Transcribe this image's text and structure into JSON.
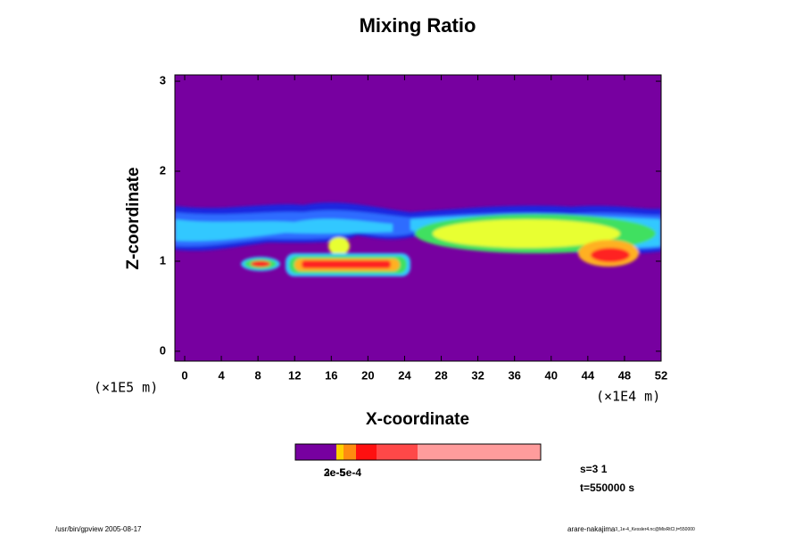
{
  "chart_data": {
    "type": "contour",
    "title": "Mixing Ratio",
    "x_label": "X-coordinate",
    "y_label": "Z-coordinate",
    "x_unit": "(×1E4 m)",
    "y_unit": "(×1E5 m)",
    "xlim": [
      -1.07,
      52
    ],
    "ylim": [
      -0.11,
      3.07
    ],
    "xticks": [
      0,
      4,
      8,
      12,
      16,
      20,
      24,
      28,
      32,
      36,
      40,
      44,
      48,
      52
    ],
    "yticks": [
      0,
      1,
      2,
      3
    ],
    "background": "#7700a0",
    "colorbar": {
      "colors": [
        "#7700a0",
        "#ffd000",
        "#ff8c10",
        "#ff1010",
        "#ff4848",
        "#ff9c9c"
      ],
      "labels": [
        "2e-5",
        "3e-5",
        "5e-4"
      ]
    },
    "info": [
      "s=3 1",
      "t=550000 s"
    ]
  },
  "footer": {
    "left": "/usr/bin/gpview 2005-08-17",
    "right": "arare-nakajima",
    "right_small": "3_1e-4_Kessler4.nc@MixRtCl,t=550000"
  }
}
